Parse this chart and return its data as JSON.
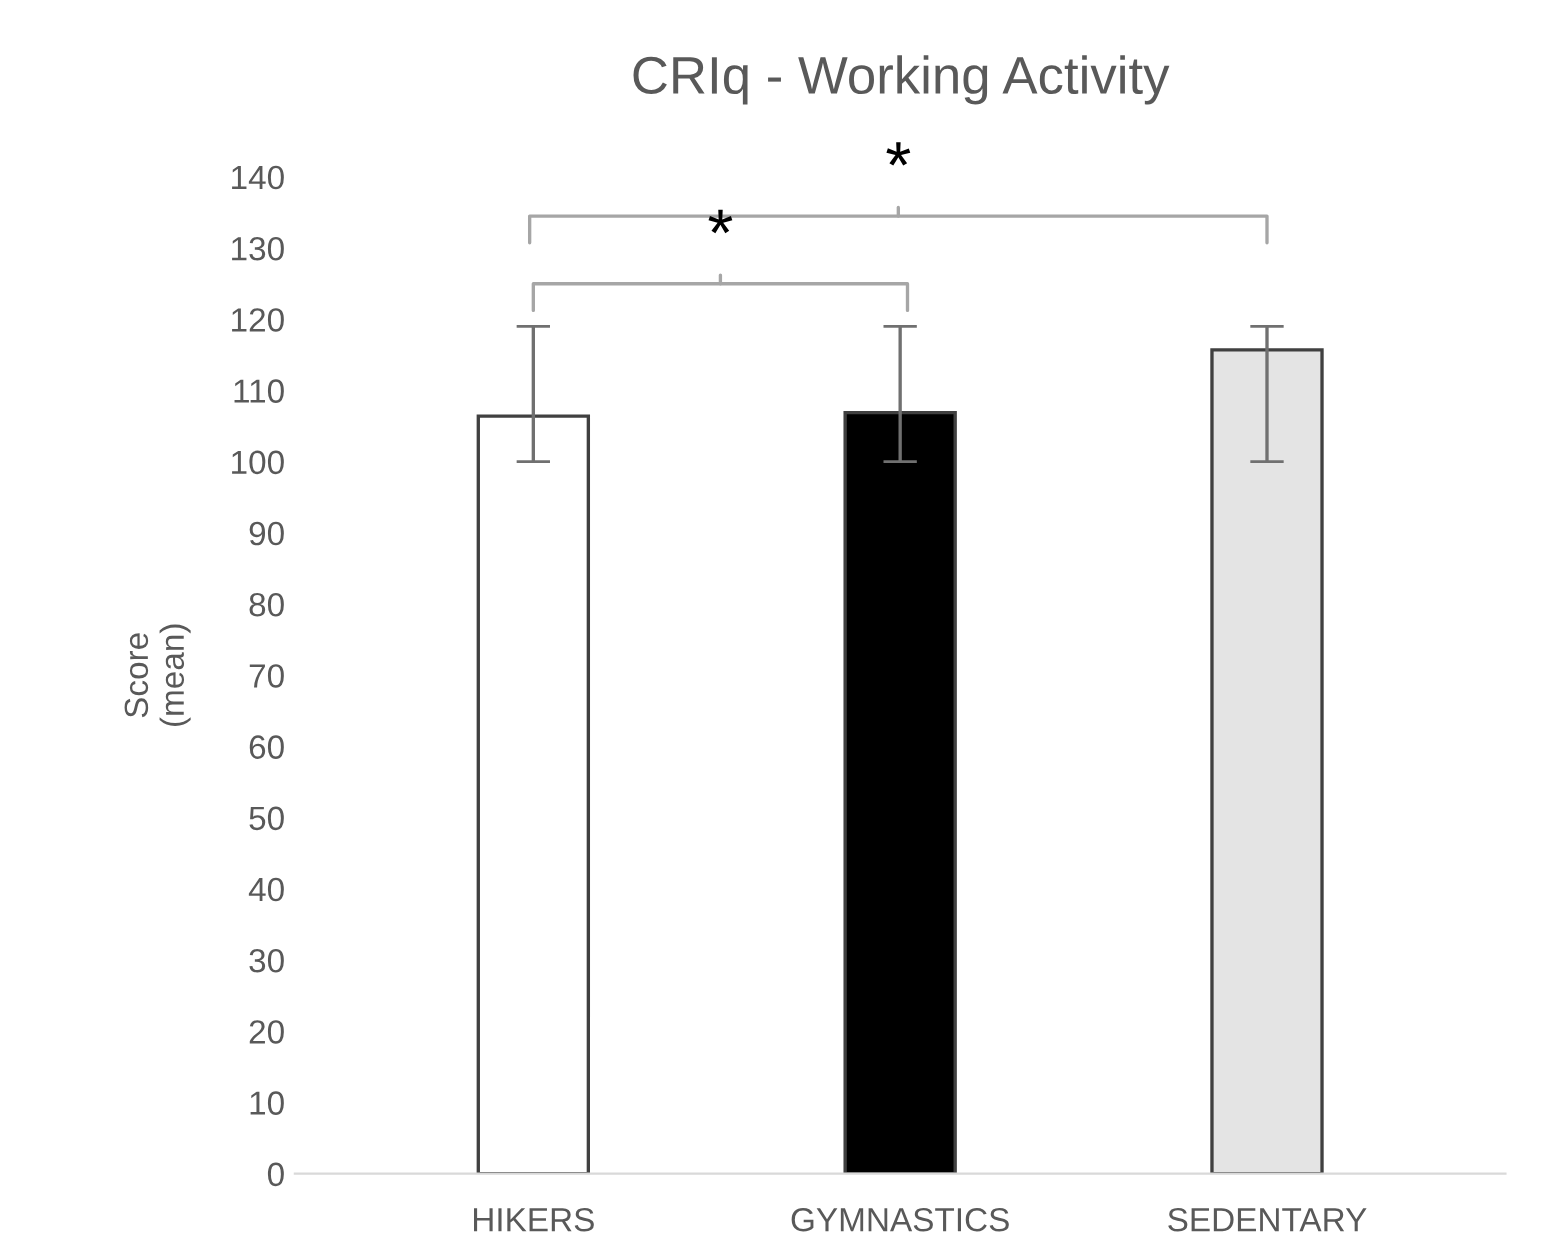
{
  "chart_data": {
    "type": "bar",
    "title": "CRIq - Working Activity",
    "ylabel": "Score\n(mean)",
    "categories": [
      "HIKERS",
      "GYMNASTICS",
      "SEDENTARY"
    ],
    "values": [
      106.4,
      106.9,
      115.7
    ],
    "colors": [
      "#ffffff",
      "#000000",
      "#e4e4e4"
    ],
    "errors": [
      [
        100,
        119
      ],
      [
        100,
        119
      ],
      [
        100,
        119
      ]
    ],
    "ylim": [
      0,
      140
    ],
    "yticks": [
      0,
      10,
      20,
      30,
      40,
      50,
      60,
      70,
      80,
      90,
      100,
      110,
      120,
      130,
      140
    ],
    "annotations": [
      "*",
      "*"
    ],
    "grid": false,
    "legend": false
  }
}
